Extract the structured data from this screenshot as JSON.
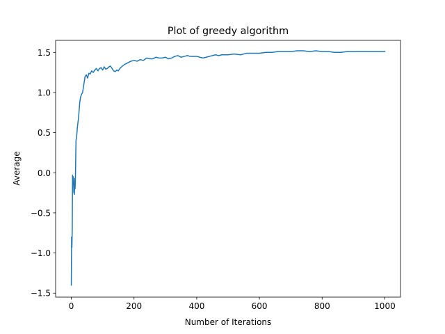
{
  "chart_data": {
    "type": "line",
    "title": "Plot of greedy algorithm",
    "xlabel": "Number of Iterations",
    "ylabel": "Average",
    "xlim": [
      -50,
      1050
    ],
    "ylim": [
      -1.55,
      1.65
    ],
    "xticks": [
      0,
      200,
      400,
      600,
      800,
      1000
    ],
    "xtick_labels": [
      "0",
      "200",
      "400",
      "600",
      "800",
      "1000"
    ],
    "yticks": [
      -1.5,
      -1.0,
      -0.5,
      0.0,
      0.5,
      1.0,
      1.5
    ],
    "ytick_labels": [
      "−1.5",
      "−1.0",
      "−0.5",
      "0.0",
      "0.5",
      "1.0",
      "1.5"
    ],
    "grid": false,
    "series": [
      {
        "color": "#1f77b4",
        "x": [
          0,
          1,
          2,
          3,
          4,
          5,
          6,
          7,
          8,
          9,
          10,
          11,
          12,
          13,
          15,
          17,
          19,
          21,
          23,
          25,
          27,
          30,
          33,
          36,
          40,
          44,
          48,
          52,
          56,
          60,
          65,
          70,
          75,
          80,
          85,
          90,
          95,
          100,
          105,
          110,
          115,
          120,
          125,
          130,
          135,
          140,
          145,
          150,
          155,
          160,
          170,
          180,
          190,
          200,
          210,
          220,
          230,
          240,
          250,
          260,
          270,
          280,
          290,
          300,
          310,
          320,
          330,
          340,
          350,
          360,
          370,
          380,
          390,
          400,
          410,
          420,
          430,
          440,
          450,
          460,
          470,
          480,
          500,
          520,
          540,
          560,
          580,
          600,
          620,
          640,
          660,
          680,
          700,
          720,
          740,
          760,
          780,
          800,
          820,
          840,
          860,
          880,
          900,
          920,
          940,
          960,
          980,
          1000
        ],
        "values": [
          -1.4,
          -0.8,
          -0.93,
          -0.7,
          -0.03,
          -0.15,
          -0.05,
          -0.1,
          -0.25,
          -0.18,
          -0.27,
          -0.07,
          -0.2,
          -0.1,
          0.4,
          0.45,
          0.55,
          0.62,
          0.68,
          0.78,
          0.88,
          0.95,
          0.98,
          1.0,
          1.1,
          1.2,
          1.22,
          1.18,
          1.24,
          1.23,
          1.27,
          1.25,
          1.28,
          1.3,
          1.27,
          1.3,
          1.31,
          1.28,
          1.32,
          1.29,
          1.3,
          1.32,
          1.33,
          1.3,
          1.27,
          1.26,
          1.28,
          1.27,
          1.3,
          1.32,
          1.35,
          1.37,
          1.39,
          1.4,
          1.39,
          1.41,
          1.4,
          1.43,
          1.42,
          1.42,
          1.44,
          1.43,
          1.43,
          1.44,
          1.42,
          1.43,
          1.45,
          1.46,
          1.44,
          1.45,
          1.46,
          1.45,
          1.45,
          1.45,
          1.44,
          1.43,
          1.44,
          1.45,
          1.46,
          1.47,
          1.46,
          1.47,
          1.47,
          1.48,
          1.47,
          1.49,
          1.49,
          1.49,
          1.5,
          1.5,
          1.51,
          1.51,
          1.51,
          1.52,
          1.52,
          1.51,
          1.52,
          1.51,
          1.51,
          1.5,
          1.5,
          1.51,
          1.51,
          1.51,
          1.51,
          1.51,
          1.51,
          1.51
        ]
      }
    ]
  }
}
